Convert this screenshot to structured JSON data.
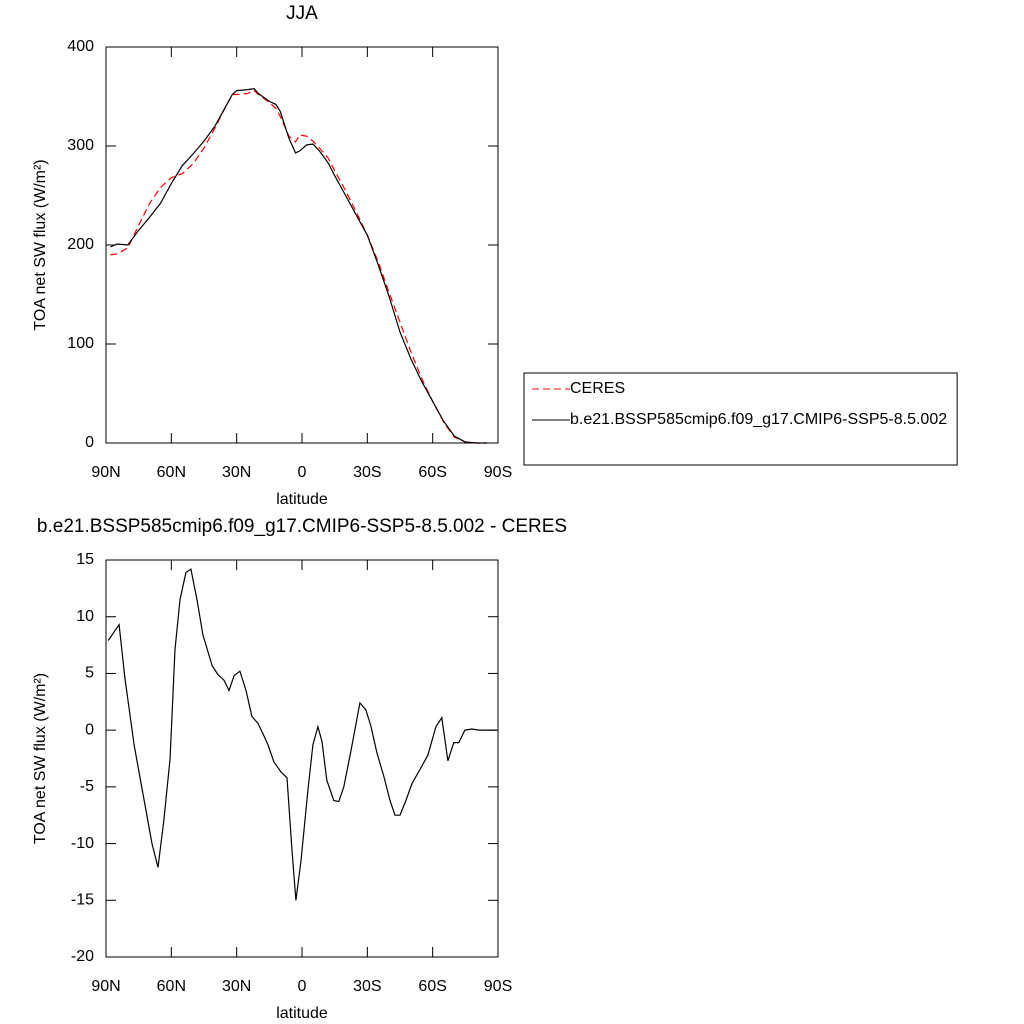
{
  "chart_data": [
    {
      "type": "line",
      "title": "JJA",
      "x_label": "latitude",
      "y_label": "TOA net SW flux (W/m²)",
      "x": [
        88,
        85,
        80,
        75,
        70,
        65,
        60,
        55,
        50,
        45,
        40,
        35,
        32,
        30,
        25,
        22,
        20,
        15,
        12,
        10,
        6,
        3,
        1,
        -2,
        -5,
        -8,
        -12,
        -15,
        -20,
        -25,
        -30,
        -35,
        -40,
        -45,
        -50,
        -55,
        -60,
        -65,
        -70,
        -75,
        -80,
        -85
      ],
      "series": [
        {
          "name": "CERES",
          "color": "#ff0000",
          "dashed": true,
          "values": [
            190,
            191,
            197,
            220,
            242,
            258,
            268,
            272,
            282,
            298,
            318,
            340,
            352,
            352,
            353,
            356,
            352,
            344,
            338,
            330,
            310,
            304,
            311,
            310,
            305,
            298,
            288,
            275,
            255,
            233,
            210,
            183,
            152,
            122,
            92,
            65,
            42,
            21,
            6,
            1,
            0,
            0
          ]
        },
        {
          "name": "b.e21.BSSP585cmip6.f09_g17.CMIP6-SSP5-8.5.002",
          "color": "#000000",
          "dashed": false,
          "values": [
            198,
            201,
            200,
            215,
            228,
            242,
            262,
            280,
            292,
            305,
            320,
            340,
            352,
            356,
            357,
            358,
            353,
            345,
            342,
            335,
            308,
            293,
            295,
            301,
            302,
            295,
            283,
            270,
            250,
            230,
            210,
            180,
            148,
            112,
            85,
            62,
            42,
            22,
            7,
            1,
            0,
            0
          ]
        }
      ],
      "xlim": [
        90,
        -90
      ],
      "xticks": [
        {
          "value": 90,
          "label": "90N"
        },
        {
          "value": 60,
          "label": "60N"
        },
        {
          "value": 30,
          "label": "30N"
        },
        0,
        {
          "value": -30,
          "label": "30S"
        },
        {
          "value": -60,
          "label": "60S"
        },
        {
          "value": -90,
          "label": "90S"
        }
      ],
      "ylim": [
        0,
        400
      ],
      "yticks": [
        0,
        100,
        200,
        300,
        400
      ],
      "legend": "right"
    },
    {
      "type": "line",
      "title": "b.e21.BSSP585cmip6.f09_g17.CMIP6-SSP5-8.5.002 - CERES",
      "x_label": "latitude",
      "y_label": "TOA net SW flux (W/m²)",
      "x": [
        89,
        84,
        81.3,
        77.1,
        72.1,
        68.9,
        66.1,
        63.4,
        60.6,
        58.3,
        56,
        53.3,
        51,
        48.2,
        45.5,
        41.3,
        38.6,
        35.8,
        33.5,
        31.2,
        28.5,
        25.7,
        23,
        20.2,
        17.5,
        15.6,
        12.9,
        9.6,
        6.9,
        4.6,
        2.8,
        0.5,
        -2.7,
        -5,
        -7.3,
        -9.2,
        -11.4,
        -14.6,
        -16.9,
        -19.2,
        -22.5,
        -26.6,
        -29.3,
        -31.6,
        -34.4,
        -37.6,
        -40.4,
        -42.7,
        -45,
        -47.7,
        -50.5,
        -54.1,
        -57.8,
        -61.5,
        -64.2,
        -67,
        -69.7,
        -72,
        -74.8,
        -78,
        -81.2,
        -86.3,
        -89.4
      ],
      "values": [
        7.9,
        9.3,
        4.6,
        -1.3,
        -6.6,
        -10,
        -12.1,
        -7.9,
        -2.6,
        7.1,
        11.5,
        13.9,
        14.2,
        11.5,
        8.4,
        5.7,
        4.9,
        4.4,
        3.5,
        4.8,
        5.2,
        3.5,
        1.2,
        0.6,
        -0.5,
        -1.3,
        -2.8,
        -3.7,
        -4.2,
        -10.6,
        -15,
        -11.6,
        -5.3,
        -1.3,
        0.3,
        -1,
        -4.4,
        -6.2,
        -6.3,
        -5,
        -1.8,
        2.4,
        1.8,
        0.4,
        -2,
        -4.1,
        -6.2,
        -7.5,
        -7.5,
        -6.2,
        -4.7,
        -3.5,
        -2.2,
        0.3,
        1.1,
        -2.7,
        -1.1,
        -1.1,
        0,
        0.1,
        0,
        0,
        0
      ],
      "color": "#000000",
      "xlim": [
        90,
        -90
      ],
      "xticks": [
        {
          "value": 90,
          "label": "90N"
        },
        {
          "value": 60,
          "label": "60N"
        },
        {
          "value": 30,
          "label": "30N"
        },
        0,
        {
          "value": -30,
          "label": "30S"
        },
        {
          "value": -60,
          "label": "60S"
        },
        {
          "value": -90,
          "label": "90S"
        }
      ],
      "ylim": [
        -20,
        15
      ],
      "yticks": [
        -20,
        -15,
        -10,
        -5,
        0,
        5,
        10,
        15
      ]
    }
  ]
}
